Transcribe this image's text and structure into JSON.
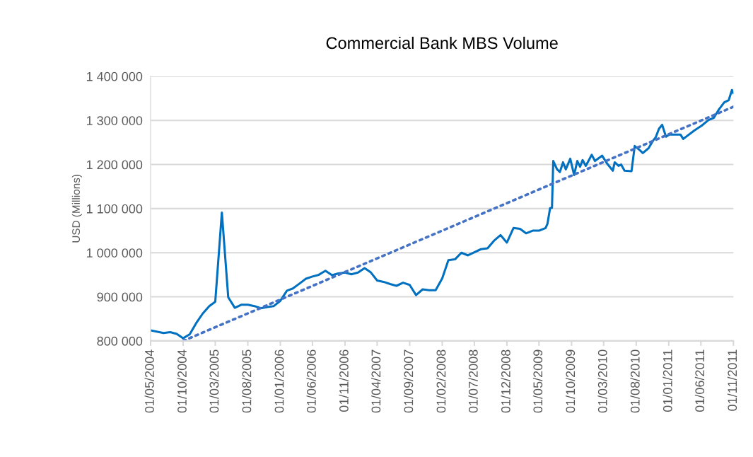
{
  "chart_data": {
    "type": "line",
    "title": "Commercial Bank MBS Volume",
    "ylabel": "USD (Millions)",
    "xlim": [
      "2004-05-01",
      "2011-11-01"
    ],
    "xticks": [
      {
        "value": "2004-05-01",
        "label": "01/05/2004"
      },
      {
        "value": "2004-10-01",
        "label": "01/10/2004"
      },
      {
        "value": "2005-03-01",
        "label": "01/03/2005"
      },
      {
        "value": "2005-08-01",
        "label": "01/08/2005"
      },
      {
        "value": "2006-01-01",
        "label": "01/01/2006"
      },
      {
        "value": "2006-06-01",
        "label": "01/06/2006"
      },
      {
        "value": "2006-11-01",
        "label": "01/11/2006"
      },
      {
        "value": "2007-04-01",
        "label": "01/04/2007"
      },
      {
        "value": "2007-09-01",
        "label": "01/09/2007"
      },
      {
        "value": "2008-02-01",
        "label": "01/02/2008"
      },
      {
        "value": "2008-07-01",
        "label": "01/07/2008"
      },
      {
        "value": "2008-12-01",
        "label": "01/12/2008"
      },
      {
        "value": "2009-05-01",
        "label": "01/05/2009"
      },
      {
        "value": "2009-10-01",
        "label": "01/10/2009"
      },
      {
        "value": "2010-03-01",
        "label": "01/03/2010"
      },
      {
        "value": "2010-08-01",
        "label": "01/08/2010"
      },
      {
        "value": "2011-01-01",
        "label": "01/01/2011"
      },
      {
        "value": "2011-06-01",
        "label": "01/06/2011"
      },
      {
        "value": "2011-11-01",
        "label": "01/11/2011"
      }
    ],
    "ylim": [
      800000,
      1400000
    ],
    "yticks": [
      {
        "value": 800000,
        "label": "800 000"
      },
      {
        "value": 900000,
        "label": "900 000"
      },
      {
        "value": 1000000,
        "label": "1 000 000"
      },
      {
        "value": 1100000,
        "label": "1 100 000"
      },
      {
        "value": 1200000,
        "label": "1 200 000"
      },
      {
        "value": 1300000,
        "label": "1 300 000"
      },
      {
        "value": 1400000,
        "label": "1 400 000"
      }
    ],
    "grid": "y",
    "legend": false,
    "series": [
      {
        "color": "#0070c0",
        "line_style": "solid",
        "x": [
          "2004-05-01",
          "2004-07-01",
          "2004-08-01",
          "2004-09-01",
          "2004-10-01",
          "2004-11-01",
          "2004-12-01",
          "2005-01-01",
          "2005-02-01",
          "2005-03-01",
          "2005-04-01",
          "2005-05-01",
          "2005-06-01",
          "2005-07-01",
          "2005-08-01",
          "2005-09-01",
          "2005-10-01",
          "2005-11-01",
          "2005-12-01",
          "2006-01-01",
          "2006-02-01",
          "2006-03-01",
          "2006-04-01",
          "2006-05-01",
          "2006-06-01",
          "2006-07-01",
          "2006-08-01",
          "2006-09-01",
          "2006-10-01",
          "2006-11-01",
          "2006-12-01",
          "2007-01-01",
          "2007-02-01",
          "2007-03-01",
          "2007-04-01",
          "2007-05-01",
          "2007-06-01",
          "2007-07-01",
          "2007-08-01",
          "2007-09-01",
          "2007-10-01",
          "2007-11-01",
          "2007-12-01",
          "2008-01-01",
          "2008-02-01",
          "2008-03-01",
          "2008-04-01",
          "2008-05-01",
          "2008-06-01",
          "2008-07-01",
          "2008-08-01",
          "2008-09-01",
          "2008-10-01",
          "2008-11-01",
          "2008-12-01",
          "2009-01-01",
          "2009-02-01",
          "2009-03-01",
          "2009-04-01",
          "2009-05-01",
          "2009-06-01",
          "2009-06-10",
          "2009-06-22",
          "2009-07-01",
          "2009-07-07",
          "2009-07-25",
          "2009-08-07",
          "2009-08-22",
          "2009-09-04",
          "2009-09-25",
          "2009-10-13",
          "2009-10-28",
          "2009-11-10",
          "2009-11-22",
          "2009-12-07",
          "2010-01-04",
          "2010-01-19",
          "2010-02-22",
          "2010-03-16",
          "2010-04-13",
          "2010-04-22",
          "2010-05-10",
          "2010-05-22",
          "2010-06-07",
          "2010-07-10",
          "2010-07-25",
          "2010-08-19",
          "2010-09-01",
          "2010-09-28",
          "2010-10-19",
          "2010-11-01",
          "2010-11-16",
          "2010-12-01",
          "2010-12-19",
          "2011-01-04",
          "2011-02-25",
          "2011-03-10",
          "2011-05-01",
          "2011-06-04",
          "2011-07-07",
          "2011-08-01",
          "2011-08-25",
          "2011-09-19",
          "2011-10-10",
          "2011-10-25",
          "2011-11-01"
        ],
        "values": [
          824000,
          818000,
          820000,
          816000,
          806000,
          815000,
          840000,
          862000,
          879000,
          889000,
          1091000,
          899000,
          875000,
          882000,
          882000,
          879000,
          874000,
          877000,
          879000,
          891000,
          914000,
          919000,
          930000,
          941000,
          946000,
          950000,
          959000,
          949000,
          953000,
          955000,
          951000,
          955000,
          965000,
          956000,
          937000,
          934000,
          929000,
          925000,
          932000,
          927000,
          904000,
          917000,
          915000,
          915000,
          942000,
          983000,
          985000,
          1000000,
          994000,
          1001000,
          1008000,
          1010000,
          1027000,
          1040000,
          1023000,
          1056000,
          1054000,
          1044000,
          1050000,
          1050000,
          1056000,
          1066000,
          1101000,
          1102000,
          1208000,
          1189000,
          1183000,
          1205000,
          1189000,
          1213000,
          1176000,
          1208000,
          1195000,
          1210000,
          1197000,
          1222000,
          1208000,
          1220000,
          1203000,
          1186000,
          1205000,
          1197000,
          1200000,
          1186000,
          1185000,
          1242000,
          1232000,
          1226000,
          1237000,
          1254000,
          1262000,
          1281000,
          1290000,
          1263000,
          1268000,
          1268000,
          1258000,
          1277000,
          1288000,
          1301000,
          1306000,
          1325000,
          1341000,
          1346000,
          1369000,
          1362000
        ]
      },
      {
        "type": "line",
        "color": "#4472c4",
        "line_style": "dotted",
        "x": [
          "2004-10-01",
          "2011-11-01"
        ],
        "values": [
          800000,
          1331000
        ]
      }
    ]
  }
}
